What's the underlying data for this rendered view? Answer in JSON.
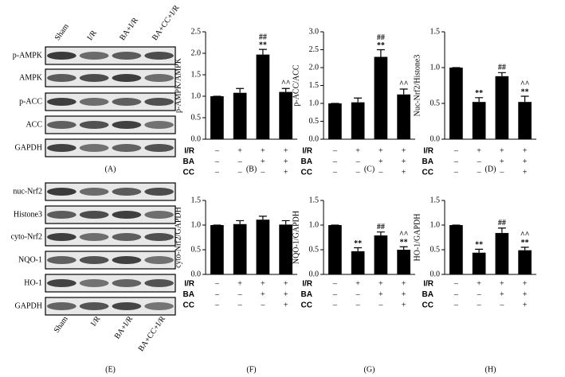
{
  "blots": [
    {
      "panel": "(A)",
      "lanes": [
        "Sham",
        "I/R",
        "BA+I/R",
        "BA+CC+I/R"
      ],
      "rows": [
        "p-AMPK",
        "AMPK",
        "p-ACC",
        "ACC",
        "GAPDH"
      ]
    },
    {
      "panel": "(E)",
      "lanes": [
        "Sham",
        "I/R",
        "BA+I/R",
        "BA+CC+I/R"
      ],
      "rows": [
        "nuc-Nrf2",
        "Histone3",
        "cyto-Nrf2",
        "NQO-1",
        "HO-1",
        "GAPDH"
      ]
    }
  ],
  "chart_data": [
    {
      "type": "bar",
      "panel": "(B)",
      "ylabel": "p-AMPK/AMPK",
      "color": "#000000",
      "conditions": [
        {
          "name": "I/R",
          "signs": [
            "–",
            "+",
            "+",
            "+"
          ]
        },
        {
          "name": "BA",
          "signs": [
            "–",
            "–",
            "+",
            "+"
          ]
        },
        {
          "name": "CC",
          "signs": [
            "–",
            "–",
            "–",
            "+"
          ]
        }
      ],
      "values": [
        1.0,
        1.08,
        1.97,
        1.1
      ],
      "errors": [
        0,
        0.1,
        0.12,
        0.08
      ],
      "annotations": [
        [],
        [],
        [
          "##",
          "**"
        ],
        [
          "^^"
        ]
      ],
      "ylim": [
        0,
        2.5
      ],
      "yticks": [
        {
          "value": 0,
          "label": "0.0"
        },
        0.5,
        {
          "value": 1,
          "label": "1.0"
        },
        1.5,
        {
          "value": 2,
          "label": "2.0"
        },
        2.5
      ]
    },
    {
      "type": "bar",
      "panel": "(C)",
      "ylabel": "p-ACC/ACC",
      "color": "#000000",
      "conditions": [
        {
          "name": "I/R",
          "signs": [
            "–",
            "+",
            "+",
            "+"
          ]
        },
        {
          "name": "BA",
          "signs": [
            "–",
            "–",
            "+",
            "+"
          ]
        },
        {
          "name": "CC",
          "signs": [
            "–",
            "–",
            "–",
            "+"
          ]
        }
      ],
      "values": [
        1.0,
        1.03,
        2.3,
        1.25
      ],
      "errors": [
        0,
        0.12,
        0.2,
        0.15
      ],
      "annotations": [
        [],
        [],
        [
          "##",
          "**"
        ],
        [
          "^^"
        ]
      ],
      "ylim": [
        0,
        3
      ],
      "yticks": [
        {
          "value": 0,
          "label": "0.0"
        },
        0.5,
        {
          "value": 1,
          "label": "1.0"
        },
        1.5,
        {
          "value": 2,
          "label": "2.0"
        },
        2.5,
        {
          "value": 3,
          "label": "3.0"
        }
      ]
    },
    {
      "type": "bar",
      "panel": "(D)",
      "ylabel": "Nuc-Nrf2/Histone3",
      "color": "#000000",
      "conditions": [
        {
          "name": "I/R",
          "signs": [
            "–",
            "+",
            "+",
            "+"
          ]
        },
        {
          "name": "BA",
          "signs": [
            "–",
            "–",
            "+",
            "+"
          ]
        },
        {
          "name": "CC",
          "signs": [
            "–",
            "–",
            "–",
            "+"
          ]
        }
      ],
      "values": [
        1.0,
        0.52,
        0.88,
        0.52
      ],
      "errors": [
        0,
        0.06,
        0.05,
        0.08
      ],
      "annotations": [
        [],
        [
          "**"
        ],
        [
          "##"
        ],
        [
          "^^",
          "**"
        ]
      ],
      "ylim": [
        0,
        1.5
      ],
      "yticks": [
        {
          "value": 0,
          "label": "0.0"
        },
        0.5,
        {
          "value": 1,
          "label": "1.0"
        },
        1.5
      ]
    },
    {
      "type": "bar",
      "panel": "(F)",
      "ylabel": "cyto-Nrf2/GAPDH",
      "color": "#000000",
      "conditions": [
        {
          "name": "I/R",
          "signs": [
            "–",
            "+",
            "+",
            "+"
          ]
        },
        {
          "name": "BA",
          "signs": [
            "–",
            "–",
            "+",
            "+"
          ]
        },
        {
          "name": "CC",
          "signs": [
            "–",
            "–",
            "–",
            "+"
          ]
        }
      ],
      "values": [
        1.0,
        1.02,
        1.11,
        1.01
      ],
      "errors": [
        0,
        0.07,
        0.07,
        0.08
      ],
      "annotations": [
        [],
        [],
        [],
        []
      ],
      "ylim": [
        0,
        1.5
      ],
      "yticks": [
        {
          "value": 0,
          "label": "0.0"
        },
        0.5,
        {
          "value": 1,
          "label": "1.0"
        },
        1.5
      ]
    },
    {
      "type": "bar",
      "panel": "(G)",
      "ylabel": "NQO-1/GAPDH",
      "color": "#000000",
      "conditions": [
        {
          "name": "I/R",
          "signs": [
            "–",
            "+",
            "+",
            "+"
          ]
        },
        {
          "name": "BA",
          "signs": [
            "–",
            "–",
            "+",
            "+"
          ]
        },
        {
          "name": "CC",
          "signs": [
            "–",
            "–",
            "–",
            "+"
          ]
        }
      ],
      "values": [
        1.0,
        0.47,
        0.79,
        0.5
      ],
      "errors": [
        0,
        0.07,
        0.07,
        0.06
      ],
      "annotations": [
        [],
        [
          "**"
        ],
        [
          "##"
        ],
        [
          "^^",
          "**"
        ]
      ],
      "ylim": [
        0,
        1.5
      ],
      "yticks": [
        {
          "value": 0,
          "label": "0.0"
        },
        0.5,
        {
          "value": 1,
          "label": "1.0"
        },
        1.5
      ]
    },
    {
      "type": "bar",
      "panel": "(H)",
      "ylabel": "HO-1/GAPDH",
      "color": "#000000",
      "conditions": [
        {
          "name": "I/R",
          "signs": [
            "–",
            "+",
            "+",
            "+"
          ]
        },
        {
          "name": "BA",
          "signs": [
            "–",
            "–",
            "+",
            "+"
          ]
        },
        {
          "name": "CC",
          "signs": [
            "–",
            "–",
            "–",
            "+"
          ]
        }
      ],
      "values": [
        1.0,
        0.44,
        0.84,
        0.49
      ],
      "errors": [
        0,
        0.07,
        0.1,
        0.06
      ],
      "annotations": [
        [],
        [
          "**"
        ],
        [
          "##"
        ],
        [
          "^^",
          "**"
        ]
      ],
      "ylim": [
        0,
        1.5
      ],
      "yticks": [
        {
          "value": 0,
          "label": "0.0"
        },
        0.5,
        {
          "value": 1,
          "label": "1.0"
        },
        1.5
      ]
    }
  ]
}
